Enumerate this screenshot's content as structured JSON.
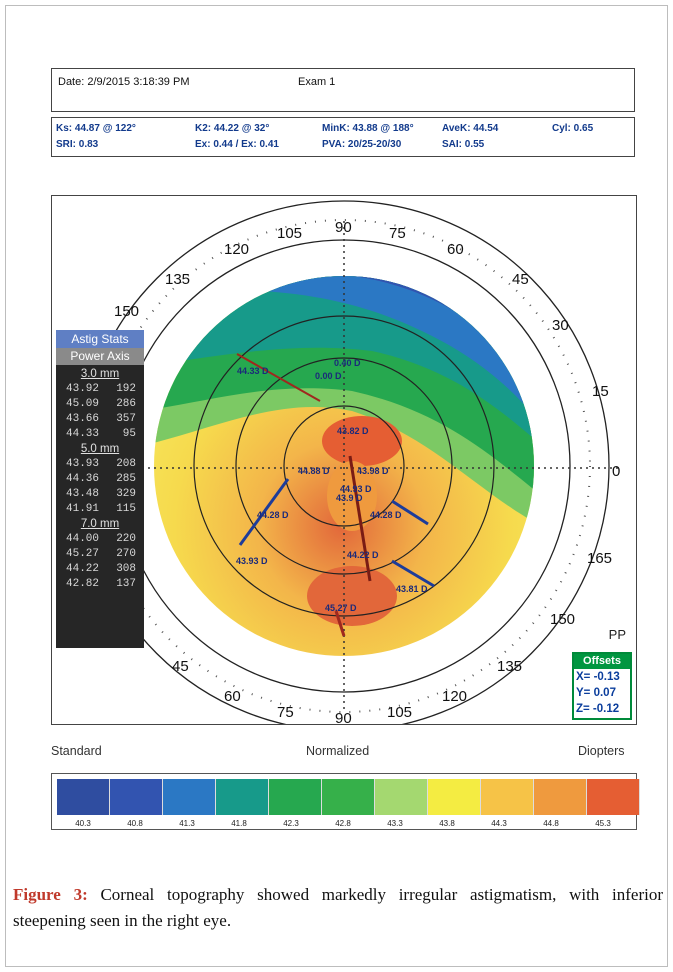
{
  "header": {
    "date": "Date: 2/9/2015 3:18:39 PM",
    "exam": "Exam 1"
  },
  "indices": {
    "ks": "Ks: 44.87 @ 122°",
    "k2": "K2: 44.22 @ 32°",
    "mink": "MinK: 43.88 @ 188°",
    "avek": "AveK: 44.54",
    "cyl": "Cyl: 0.65",
    "sri": "SRI: 0.83",
    "ex": "Ex: 0.44 / Ex: 0.41",
    "pva": "PVA: 20/25-20/30",
    "sai": "SAI: 0.55"
  },
  "axis_labels": {
    "outer": [
      "90",
      "105",
      "120",
      "135",
      "150",
      "30",
      "45",
      "60",
      "75",
      "15",
      "0",
      "165",
      "150",
      "135",
      "120",
      "105",
      "90",
      "75",
      "60",
      "45"
    ]
  },
  "astig_stats": {
    "title": "Astig Stats",
    "subtitle": "Power  Axis",
    "zones": [
      {
        "label": "3.0 mm",
        "rows": [
          [
            "43.92",
            "192"
          ],
          [
            "45.09",
            "286"
          ],
          [
            "43.66",
            "357"
          ],
          [
            "44.33",
            "95"
          ]
        ]
      },
      {
        "label": "5.0 mm",
        "rows": [
          [
            "43.93",
            "208"
          ],
          [
            "44.36",
            "285"
          ],
          [
            "43.48",
            "329"
          ],
          [
            "41.91",
            "115"
          ]
        ]
      },
      {
        "label": "7.0 mm",
        "rows": [
          [
            "44.00",
            "220"
          ],
          [
            "45.27",
            "270"
          ],
          [
            "44.22",
            "308"
          ],
          [
            "42.82",
            "137"
          ]
        ]
      }
    ]
  },
  "map_values": [
    "0.40 D",
    "0.00 D",
    "44.33 D",
    "43.82 D",
    "44.88 D",
    "43.9 D",
    "43.98 D",
    "44.28 D",
    "44.28 D",
    "44.22 D",
    "45.27 D",
    "43.93 D",
    "43.81 D",
    "44.93 D"
  ],
  "pp_label": "PP",
  "offsets": {
    "title": "Offsets",
    "x": "X= -0.13",
    "y": "Y=  0.07",
    "z": "Z= -0.12"
  },
  "footer": {
    "left": "Standard",
    "center": "Normalized",
    "right": "Diopters"
  },
  "scale": {
    "colors": [
      "#2f4da0",
      "#3254b0",
      "#2b78c4",
      "#179a8a",
      "#26a84f",
      "#36b04a",
      "#a4d870",
      "#f4ec42",
      "#f6c347",
      "#ef9a3e",
      "#e55e33"
    ],
    "values": [
      "40.3",
      "40.8",
      "41.3",
      "41.8",
      "42.3",
      "42.8",
      "43.3",
      "43.8",
      "44.3",
      "44.8",
      "45.3"
    ]
  },
  "caption": {
    "label": "Figure 3:",
    "text": " Corneal topography showed markedly irregular astigmatism, with inferior steepening seen in the right eye."
  }
}
